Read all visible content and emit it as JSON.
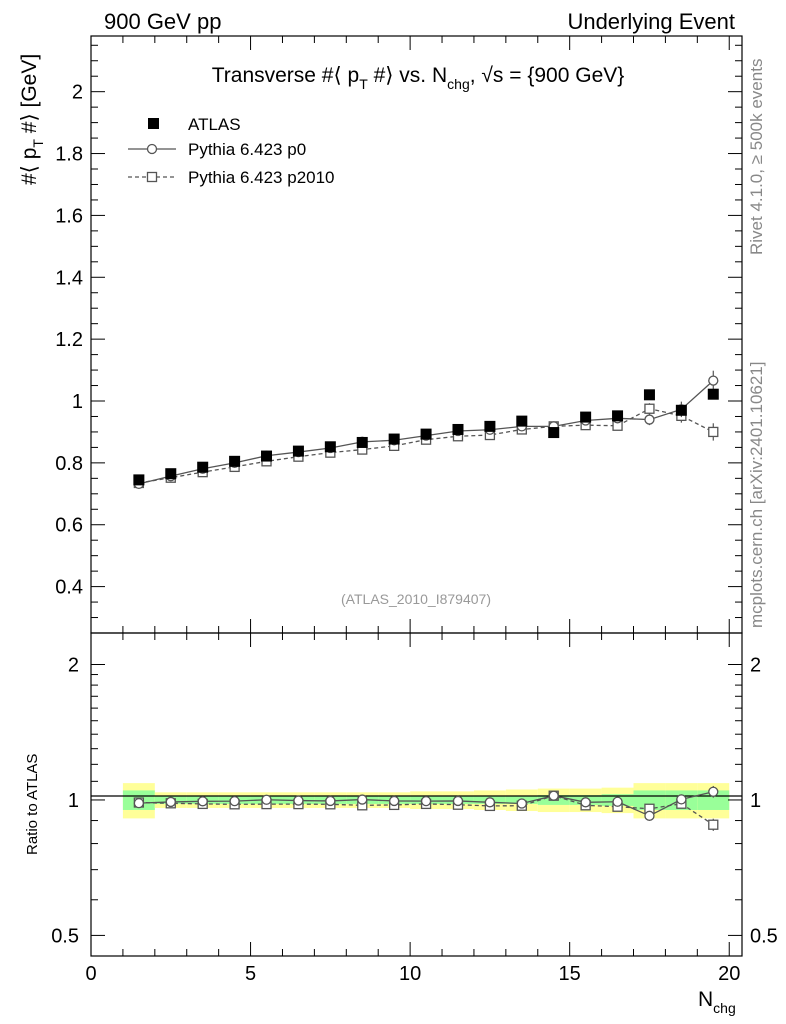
{
  "header": {
    "left": "900 GeV pp",
    "right": "Underlying Event"
  },
  "side_labels": {
    "rivet": "Rivet 4.1.0, ≥ 500k events",
    "mcplots": "mcplots.cern.ch [arXiv:2401.10621]"
  },
  "chart_data": {
    "type": "scatter",
    "title": "Transverse #⟨ p_T #⟩ vs. N_chg, √s = {900 GeV}",
    "title_parts": {
      "main": "Transverse #⟨ p",
      "sub1": "T",
      "mid": " #⟩ vs. N",
      "sub2": "chg",
      "end": ", √s = {900 GeV}"
    },
    "ylabel_parts": {
      "main": "#⟨ p",
      "sub": "T",
      "end": " #⟩ [GeV]"
    },
    "xlabel_parts": {
      "main": "N",
      "sub": "chg"
    },
    "ratio_ylabel": "Ratio to ATLAS",
    "watermark": "(ATLAS_2010_I879407)",
    "xlim": [
      0,
      20.4
    ],
    "ylim": [
      0.25,
      2.18
    ],
    "ratio_ylim": [
      0.45,
      2.35
    ],
    "x_major_ticks": [
      "0",
      "5",
      "10",
      "15",
      "20"
    ],
    "y_major_ticks": [
      "0.4",
      "0.6",
      "0.8",
      "1",
      "1.2",
      "1.4",
      "1.6",
      "1.8",
      "2"
    ],
    "ratio_y_ticks": [
      "0.5",
      "1",
      "2"
    ],
    "x": [
      1.5,
      2.5,
      3.5,
      4.5,
      5.5,
      6.5,
      7.5,
      8.5,
      9.5,
      10.5,
      11.5,
      12.5,
      13.5,
      14.5,
      15.5,
      16.5,
      17.5,
      18.5,
      19.5
    ],
    "series": [
      {
        "name": "ATLAS",
        "values": [
          0.745,
          0.765,
          0.786,
          0.805,
          0.822,
          0.838,
          0.852,
          0.866,
          0.877,
          0.893,
          0.908,
          0.918,
          0.935,
          0.898,
          0.948,
          0.952,
          1.02,
          0.97,
          1.022
        ],
        "band_inner": [
          0.05,
          0.02,
          0.02,
          0.02,
          0.02,
          0.02,
          0.02,
          0.02,
          0.02,
          0.02,
          0.02,
          0.02,
          0.02,
          0.025,
          0.025,
          0.03,
          0.05,
          0.05,
          0.05
        ],
        "band_outer": [
          0.09,
          0.04,
          0.04,
          0.04,
          0.04,
          0.04,
          0.04,
          0.04,
          0.04,
          0.045,
          0.045,
          0.05,
          0.055,
          0.06,
          0.06,
          0.065,
          0.09,
          0.09,
          0.09
        ]
      },
      {
        "name": "Pythia 6.423 p0",
        "values": [
          0.732,
          0.757,
          0.781,
          0.8,
          0.823,
          0.835,
          0.848,
          0.868,
          0.873,
          0.888,
          0.903,
          0.907,
          0.918,
          0.918,
          0.937,
          0.944,
          0.94,
          0.973,
          1.066
        ],
        "errors": [
          0.004,
          0.004,
          0.004,
          0.004,
          0.005,
          0.005,
          0.005,
          0.006,
          0.006,
          0.007,
          0.008,
          0.009,
          0.01,
          0.011,
          0.013,
          0.015,
          0.018,
          0.025,
          0.032
        ],
        "ratio": [
          0.984,
          0.99,
          0.993,
          0.994,
          1.001,
          0.997,
          0.995,
          1.002,
          0.995,
          0.994,
          0.995,
          0.988,
          0.982,
          1.022,
          0.988,
          0.991,
          0.922,
          1.003,
          1.043
        ]
      },
      {
        "name": "Pythia 6.423 p2010",
        "values": [
          0.735,
          0.752,
          0.77,
          0.787,
          0.805,
          0.82,
          0.833,
          0.843,
          0.855,
          0.875,
          0.886,
          0.89,
          0.908,
          0.918,
          0.922,
          0.92,
          0.975,
          0.952,
          0.9
        ],
        "errors": [
          0.004,
          0.004,
          0.004,
          0.004,
          0.005,
          0.005,
          0.005,
          0.006,
          0.006,
          0.007,
          0.008,
          0.009,
          0.01,
          0.011,
          0.013,
          0.015,
          0.018,
          0.022,
          0.028
        ],
        "ratio": [
          0.987,
          0.983,
          0.98,
          0.978,
          0.979,
          0.979,
          0.978,
          0.973,
          0.975,
          0.98,
          0.976,
          0.97,
          0.971,
          1.022,
          0.973,
          0.966,
          0.956,
          0.981,
          0.881
        ]
      }
    ],
    "colors": {
      "atlas": "#000000",
      "mc": "#555555",
      "band_outer": "#ffff99",
      "band_inner": "#99ff99",
      "watermark": "#999999",
      "side_label": "#888888"
    }
  }
}
